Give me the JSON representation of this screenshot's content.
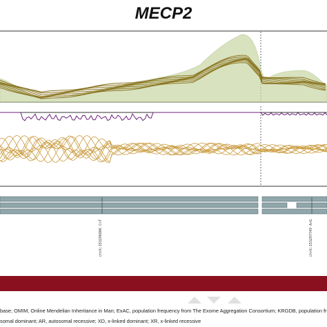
{
  "figure": {
    "title": "MECP2"
  },
  "variant_labels": [
    "chrX:153296806 C>T",
    "chrX:153297749 A>G"
  ],
  "caption": {
    "line1": "base; OMIM, Online Mendelian Inheritance in Man; ExAC, population frequency from The Exome Aggregation Consortium; KRGDB, population freq",
    "line2": "somal dominant; AR, autosomal recessive; XD, x-linked dominant; XR, x-linked recessive"
  },
  "colors": {
    "envelope": "#c8d6a4",
    "mean_lines": "#8a7420",
    "conservation": "#6a1f7a",
    "scores": "#c99a3c",
    "transcripts": "#8fa6ab",
    "domain_bar": "#8a1020",
    "axis": "#333333"
  },
  "icons": {
    "logo": "watermark-logo"
  }
}
